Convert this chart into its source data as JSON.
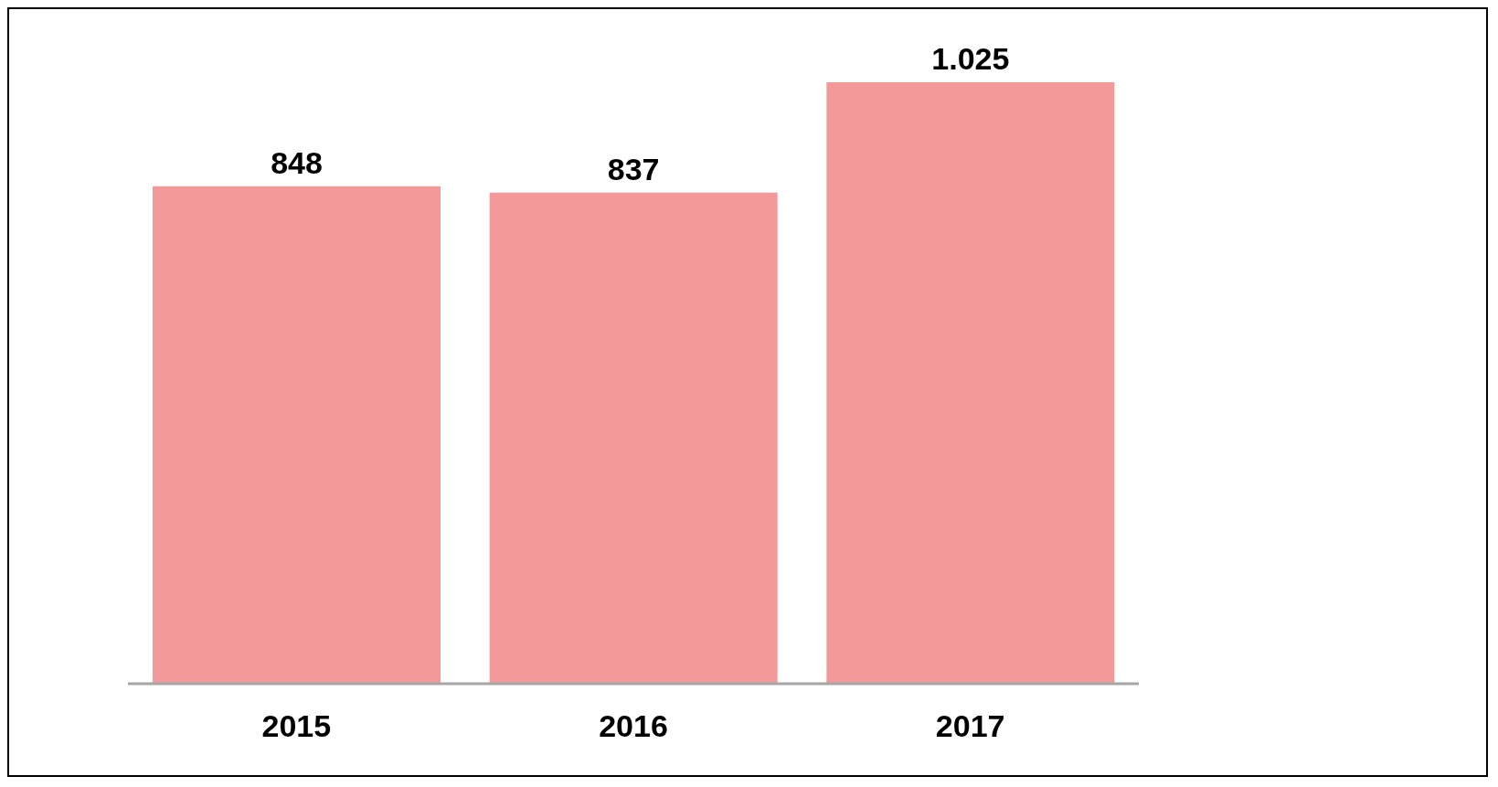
{
  "chart_data": {
    "type": "bar",
    "categories": [
      "2015",
      "2016",
      "2017"
    ],
    "values": [
      848,
      837,
      1025
    ],
    "value_labels": [
      "848",
      "837",
      "1.025"
    ],
    "color": "#f4999a",
    "grid": false,
    "legend": false
  }
}
